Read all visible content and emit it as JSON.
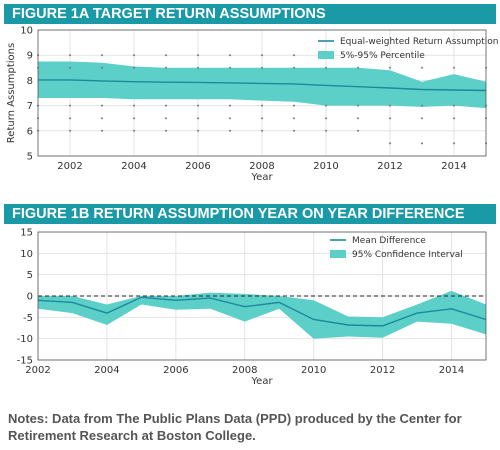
{
  "figure_a": {
    "banner": "FIGURE 1A TARGET RETURN ASSUMPTIONS"
  },
  "figure_b": {
    "banner": "FIGURE 1B RETURN ASSUMPTION YEAR ON YEAR DIFFERENCE"
  },
  "notes": "Notes: Data from The Public Plans Data (PPD) produced by the Center for Retirement Research at Boston College.",
  "colors": {
    "banner": "#1a99a6",
    "band": "#5ccfc8",
    "line": "#1a8a9c",
    "dots": "#777777"
  },
  "chart_data": [
    {
      "type": "line",
      "title": "FIGURE 1A TARGET RETURN ASSUMPTIONS",
      "xlabel": "Year",
      "ylabel": "Return Assumptions",
      "xlim": [
        2001,
        2015
      ],
      "ylim": [
        5,
        10
      ],
      "xticks": [
        2002,
        2004,
        2006,
        2008,
        2010,
        2012,
        2014
      ],
      "yticks": [
        5,
        6,
        7,
        8,
        9,
        10
      ],
      "grid": true,
      "legend_position": "top-right",
      "x": [
        2001,
        2002,
        2003,
        2004,
        2005,
        2006,
        2007,
        2008,
        2009,
        2010,
        2011,
        2012,
        2013,
        2014,
        2015
      ],
      "series": [
        {
          "name": "Equal-weighted Return Assumption",
          "kind": "line",
          "values": [
            8.02,
            8.02,
            7.98,
            7.95,
            7.93,
            7.92,
            7.9,
            7.88,
            7.86,
            7.8,
            7.75,
            7.7,
            7.64,
            7.62,
            7.6
          ]
        },
        {
          "name": "5%-95% Percentile",
          "kind": "band",
          "upper": [
            8.75,
            8.75,
            8.7,
            8.55,
            8.5,
            8.5,
            8.5,
            8.5,
            8.5,
            8.5,
            8.5,
            8.4,
            7.95,
            8.25,
            7.95
          ],
          "lower": [
            7.3,
            7.3,
            7.3,
            7.25,
            7.25,
            7.25,
            7.25,
            7.2,
            7.15,
            7.0,
            7.0,
            7.0,
            6.95,
            7.0,
            6.9
          ]
        }
      ],
      "scatter_points": [
        [
          2001,
          9.0
        ],
        [
          2001,
          8.5
        ],
        [
          2001,
          7.0
        ],
        [
          2001,
          6.5
        ],
        [
          2001,
          6.0
        ],
        [
          2002,
          9.0
        ],
        [
          2002,
          8.5
        ],
        [
          2002,
          7.0
        ],
        [
          2002,
          6.5
        ],
        [
          2002,
          6.0
        ],
        [
          2003,
          9.0
        ],
        [
          2003,
          8.5
        ],
        [
          2003,
          7.0
        ],
        [
          2003,
          6.5
        ],
        [
          2003,
          6.0
        ],
        [
          2004,
          9.0
        ],
        [
          2004,
          8.5
        ],
        [
          2004,
          7.0
        ],
        [
          2004,
          6.5
        ],
        [
          2004,
          6.0
        ],
        [
          2005,
          9.0
        ],
        [
          2005,
          8.5
        ],
        [
          2005,
          7.0
        ],
        [
          2005,
          6.5
        ],
        [
          2005,
          6.0
        ],
        [
          2006,
          9.0
        ],
        [
          2006,
          8.5
        ],
        [
          2006,
          7.0
        ],
        [
          2006,
          6.5
        ],
        [
          2006,
          6.0
        ],
        [
          2007,
          9.0
        ],
        [
          2007,
          8.5
        ],
        [
          2007,
          7.0
        ],
        [
          2007,
          6.5
        ],
        [
          2007,
          6.0
        ],
        [
          2008,
          9.0
        ],
        [
          2008,
          8.5
        ],
        [
          2008,
          7.0
        ],
        [
          2008,
          6.5
        ],
        [
          2008,
          6.0
        ],
        [
          2009,
          9.0
        ],
        [
          2009,
          8.5
        ],
        [
          2009,
          7.0
        ],
        [
          2009,
          6.5
        ],
        [
          2009,
          6.0
        ],
        [
          2010,
          9.0
        ],
        [
          2010,
          8.5
        ],
        [
          2010,
          7.0
        ],
        [
          2010,
          6.5
        ],
        [
          2010,
          6.0
        ],
        [
          2011,
          8.5
        ],
        [
          2011,
          7.0
        ],
        [
          2011,
          6.5
        ],
        [
          2011,
          6.0
        ],
        [
          2012,
          8.5
        ],
        [
          2012,
          7.0
        ],
        [
          2012,
          6.5
        ],
        [
          2012,
          5.5
        ],
        [
          2013,
          8.5
        ],
        [
          2013,
          7.0
        ],
        [
          2013,
          6.5
        ],
        [
          2013,
          5.5
        ],
        [
          2014,
          8.5
        ],
        [
          2014,
          7.0
        ],
        [
          2014,
          6.5
        ],
        [
          2014,
          5.5
        ],
        [
          2015,
          8.5
        ],
        [
          2015,
          7.0
        ],
        [
          2015,
          6.5
        ],
        [
          2015,
          5.5
        ]
      ]
    },
    {
      "type": "line",
      "title": "FIGURE 1B RETURN ASSUMPTION YEAR ON YEAR DIFFERENCE",
      "xlabel": "Year",
      "ylabel": "",
      "xlim": [
        2002,
        2015
      ],
      "ylim": [
        -15,
        15
      ],
      "xticks": [
        2002,
        2004,
        2006,
        2008,
        2010,
        2012,
        2014
      ],
      "yticks": [
        -15,
        -10,
        -5,
        0,
        5,
        10,
        15
      ],
      "grid": true,
      "zero_line": "dashed",
      "legend_position": "top-right",
      "x": [
        2002,
        2003,
        2004,
        2005,
        2006,
        2007,
        2008,
        2009,
        2010,
        2011,
        2012,
        2013,
        2014,
        2015
      ],
      "series": [
        {
          "name": "Mean Difference",
          "kind": "line",
          "values": [
            -1.0,
            -1.5,
            -4.0,
            -0.3,
            -1.0,
            -0.5,
            -2.5,
            -1.5,
            -5.5,
            -6.8,
            -7.0,
            -4.0,
            -3.0,
            -5.5
          ]
        },
        {
          "name": "95% Confidence Interval",
          "kind": "band",
          "upper": [
            0.0,
            0.0,
            -2.0,
            0.0,
            0.0,
            0.8,
            0.5,
            0.0,
            -1.0,
            -4.8,
            -5.0,
            -2.0,
            1.2,
            -2.0
          ],
          "lower": [
            -3.0,
            -4.0,
            -6.8,
            -2.0,
            -3.2,
            -3.0,
            -6.0,
            -3.0,
            -10.0,
            -9.5,
            -9.8,
            -6.0,
            -6.5,
            -9.0
          ]
        }
      ]
    }
  ]
}
